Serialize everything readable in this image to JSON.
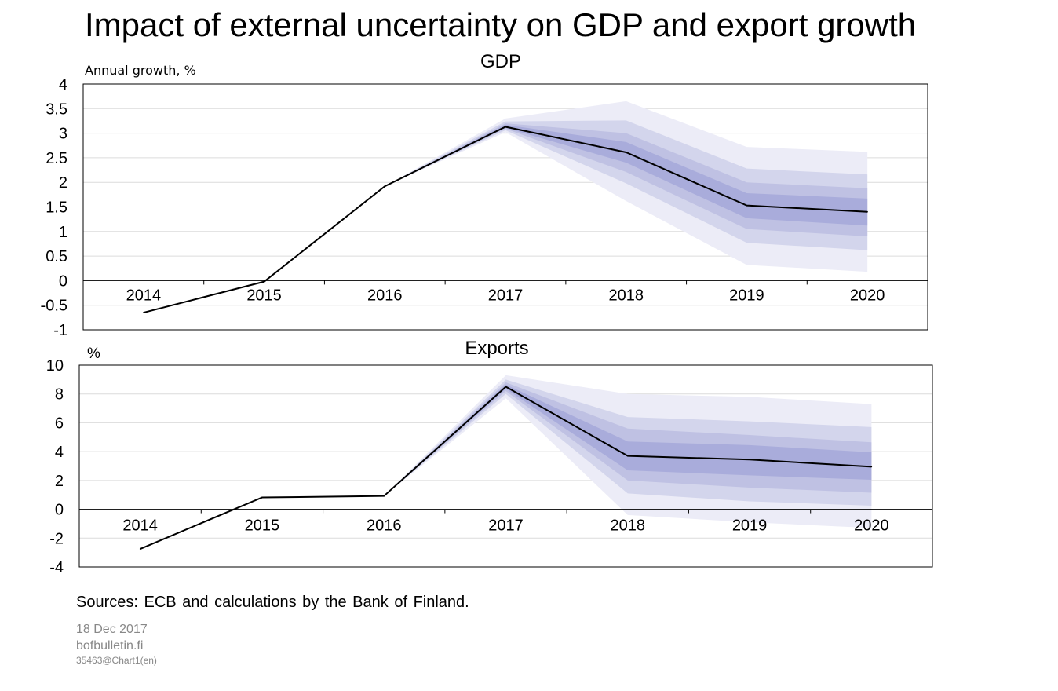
{
  "title": "Impact of external uncertainty on GDP and export growth",
  "sources": "Sources: ECB and calculations by the Bank of Finland.",
  "footer": {
    "date": "18 Dec 2017",
    "site": "bofbulletin.fi",
    "code": "35463@Chart1(en)"
  },
  "colors": {
    "band_outer": "#ececf7",
    "band_2": "#d3d5ec",
    "band_3": "#bfc1e3",
    "band_inner": "#a9acdb",
    "line": "#000000"
  },
  "chart_data": [
    {
      "type": "area",
      "title": "GDP",
      "ylabel": "Annual growth, %",
      "categories": [
        "2014",
        "2015",
        "2016",
        "2017",
        "2018",
        "2019",
        "2020"
      ],
      "ylim": [
        -1,
        4
      ],
      "yticks": [
        "-1",
        "-0.5",
        "0",
        "0.5",
        "1",
        "1.5",
        "2",
        "2.5",
        "3",
        "3.5",
        "4"
      ],
      "grid": true,
      "series": [
        {
          "values": [
            -0.65,
            -0.02,
            1.92,
            3.13,
            2.61,
            1.53,
            1.4
          ]
        }
      ],
      "fan_start_index": 3,
      "bands": [
        {
          "lower": [
            3.02,
            1.62,
            0.32,
            0.18
          ],
          "upper": [
            3.3,
            3.65,
            2.72,
            2.62
          ]
        },
        {
          "lower": [
            3.06,
            1.98,
            0.77,
            0.62
          ],
          "upper": [
            3.24,
            3.26,
            2.28,
            2.16
          ]
        },
        {
          "lower": [
            3.09,
            2.21,
            1.05,
            0.9
          ],
          "upper": [
            3.2,
            3.0,
            2.0,
            1.88
          ]
        },
        {
          "lower": [
            3.11,
            2.4,
            1.27,
            1.12
          ],
          "upper": [
            3.17,
            2.82,
            1.78,
            1.67
          ]
        }
      ]
    },
    {
      "type": "area",
      "title": "Exports",
      "ylabel": "%",
      "categories": [
        "2014",
        "2015",
        "2016",
        "2017",
        "2018",
        "2019",
        "2020"
      ],
      "ylim": [
        -4,
        10
      ],
      "yticks": [
        "-4",
        "-2",
        "0",
        "2",
        "4",
        "6",
        "8",
        "10"
      ],
      "grid": true,
      "series": [
        {
          "values": [
            -2.75,
            0.82,
            0.92,
            8.5,
            3.7,
            3.45,
            2.95
          ]
        }
      ],
      "fan_start_index": 3,
      "bands": [
        {
          "lower": [
            7.7,
            -0.4,
            -0.9,
            -1.3
          ],
          "upper": [
            9.3,
            8.0,
            7.8,
            7.3
          ]
        },
        {
          "lower": [
            8.0,
            1.1,
            0.55,
            0.25
          ],
          "upper": [
            9.0,
            6.4,
            6.1,
            5.7
          ]
        },
        {
          "lower": [
            8.2,
            2.0,
            1.5,
            1.15
          ],
          "upper": [
            8.8,
            5.6,
            5.15,
            4.65
          ]
        },
        {
          "lower": [
            8.35,
            2.7,
            2.35,
            2.05
          ],
          "upper": [
            8.65,
            4.7,
            4.45,
            3.95
          ]
        }
      ]
    }
  ]
}
